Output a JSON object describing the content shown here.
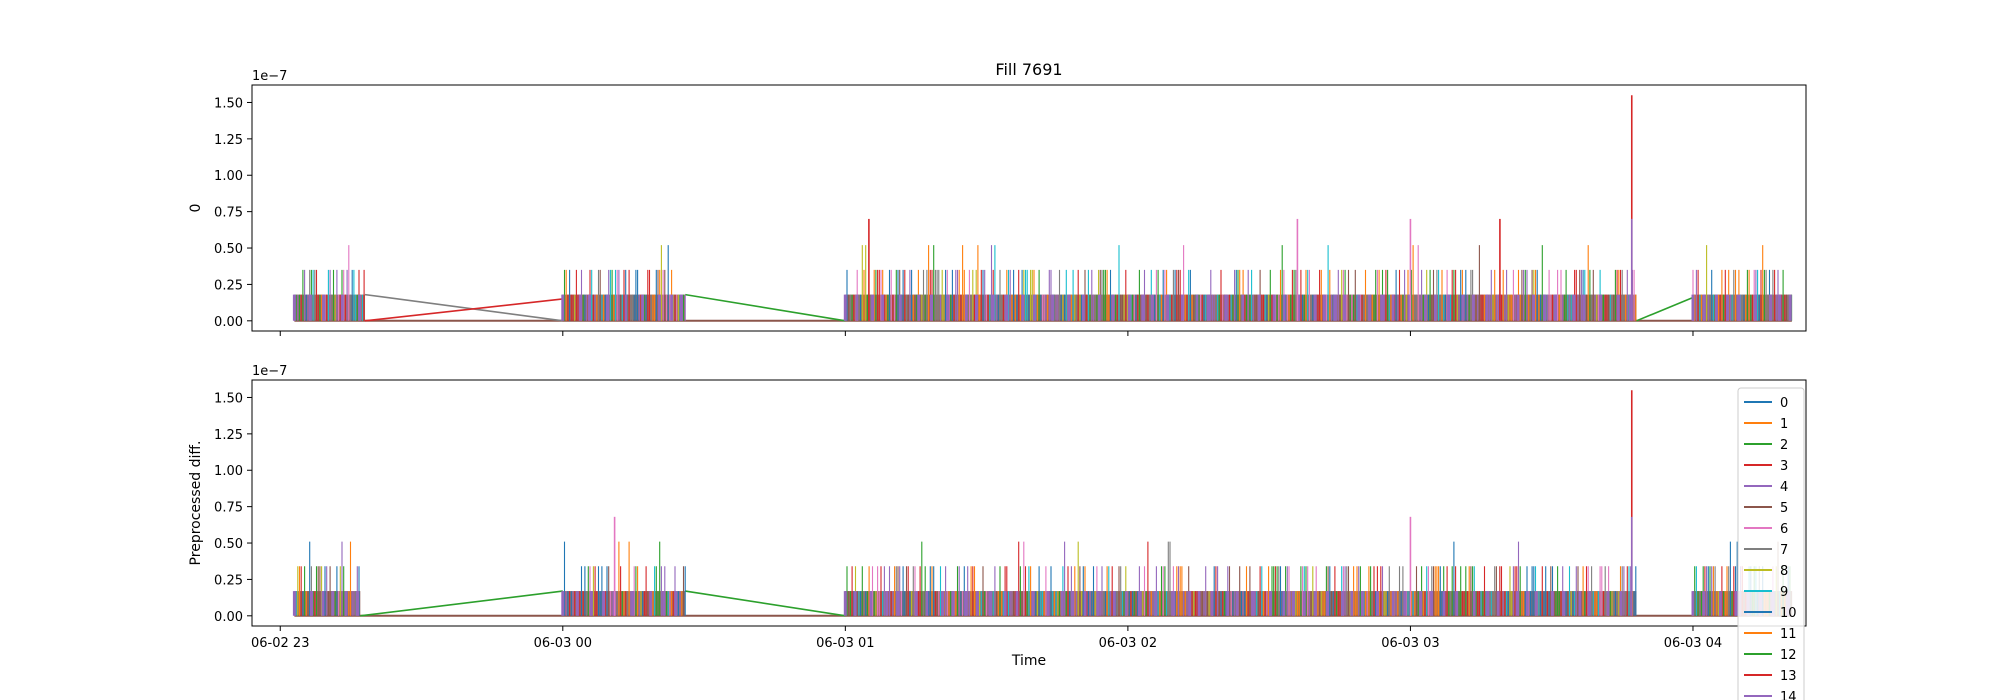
{
  "chart_data": {
    "type": "line",
    "title": "Fill 7691",
    "xlabel": "Time",
    "legend_placement": "right",
    "series_colors": [
      "#1f77b4",
      "#ff7f0e",
      "#2ca02c",
      "#d62728",
      "#9467bd",
      "#8c564b",
      "#e377c2",
      "#7f7f7f",
      "#bcbd22",
      "#17becf",
      "#1f77b4",
      "#ff7f0e",
      "#2ca02c",
      "#d62728",
      "#9467bd"
    ],
    "legend": [
      "0",
      "1",
      "2",
      "3",
      "4",
      "5",
      "6",
      "7",
      "8",
      "9",
      "10",
      "11",
      "12",
      "13",
      "14"
    ],
    "x_ticks": [
      "06-02 23",
      "06-03 00",
      "06-03 01",
      "06-03 02",
      "06-03 03",
      "06-03 04"
    ],
    "x_range": [
      "06-02 22:54",
      "06-03 04:24"
    ],
    "panels": [
      {
        "ylabel": "0",
        "y_scale_label": "1e−7",
        "y_ticks": [
          "0.00",
          "0.25",
          "0.50",
          "0.75",
          "1.00",
          "1.25",
          "1.50"
        ],
        "ylim": [
          -0.07,
          1.62
        ],
        "segments": [
          [
            "06-02 23:03",
            "06-02 23:18"
          ],
          [
            "06-03 00:00",
            "06-03 00:26"
          ],
          [
            "06-03 01:00",
            "06-03 03:48"
          ],
          [
            "06-03 04:00",
            "06-03 04:21"
          ]
        ],
        "peaks": [
          {
            "x": "06-03 03:47",
            "y": 1.55,
            "series": "13"
          },
          {
            "x": "06-03 03:47",
            "y": 0.7,
            "series": "14"
          },
          {
            "x": "06-03 03:00",
            "y": 0.7,
            "series": "6"
          },
          {
            "x": "06-03 02:36",
            "y": 0.7,
            "series": "6"
          },
          {
            "x": "06-03 01:05",
            "y": 0.7,
            "series": "3"
          },
          {
            "x": "06-03 03:19",
            "y": 0.7,
            "series": "3"
          }
        ],
        "connectors": [
          {
            "from": [
              "06-02 23:18",
              0.18
            ],
            "to": [
              "06-03 00:00",
              0.0
            ],
            "series": "7"
          },
          {
            "from": [
              "06-02 23:18",
              0.0
            ],
            "to": [
              "06-03 00:00",
              0.15
            ],
            "series": "3"
          },
          {
            "from": [
              "06-03 00:26",
              0.18
            ],
            "to": [
              "06-03 01:00",
              0.0
            ],
            "series": "2"
          },
          {
            "from": [
              "06-03 03:48",
              0.0
            ],
            "to": [
              "06-03 04:00",
              0.16
            ],
            "series": "2"
          }
        ]
      },
      {
        "ylabel": "Preprocessed diff.",
        "y_scale_label": "1e−7",
        "y_ticks": [
          "0.00",
          "0.25",
          "0.50",
          "0.75",
          "1.00",
          "1.25",
          "1.50"
        ],
        "ylim": [
          -0.07,
          1.62
        ],
        "segments": [
          [
            "06-02 23:03",
            "06-02 23:17"
          ],
          [
            "06-03 00:00",
            "06-03 00:26"
          ],
          [
            "06-03 01:00",
            "06-03 03:48"
          ],
          [
            "06-03 04:00",
            "06-03 04:21"
          ]
        ],
        "peaks": [
          {
            "x": "06-03 03:47",
            "y": 1.55,
            "series": "13"
          },
          {
            "x": "06-03 03:47",
            "y": 0.68,
            "series": "14"
          },
          {
            "x": "06-03 03:00",
            "y": 0.68,
            "series": "6"
          },
          {
            "x": "06-03 00:11",
            "y": 0.68,
            "series": "6"
          }
        ],
        "connectors": [
          {
            "from": [
              "06-02 23:17",
              0.0
            ],
            "to": [
              "06-03 00:00",
              0.17
            ],
            "series": "2"
          },
          {
            "from": [
              "06-03 00:26",
              0.17
            ],
            "to": [
              "06-03 01:00",
              0.0
            ],
            "series": "2"
          }
        ]
      }
    ]
  }
}
